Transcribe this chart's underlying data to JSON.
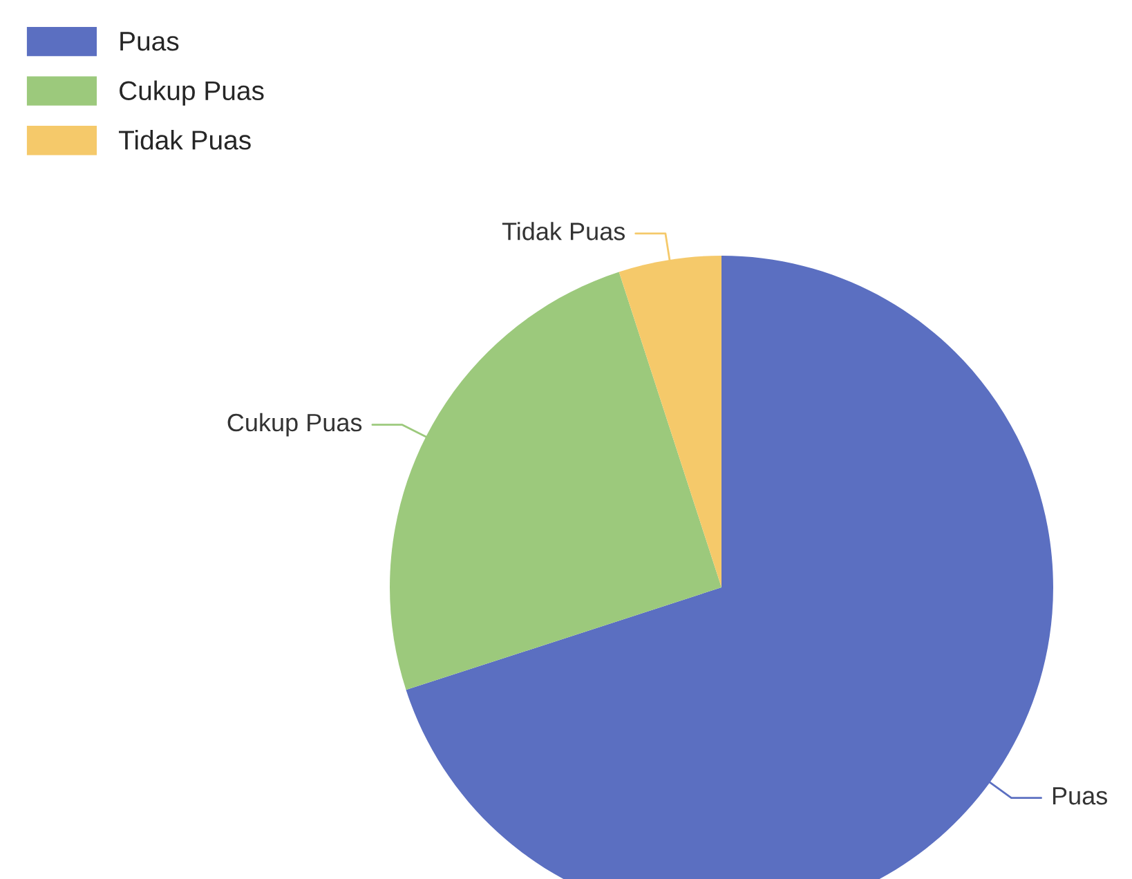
{
  "chart_data": {
    "type": "pie",
    "categories": [
      "Puas",
      "Cukup Puas",
      "Tidak Puas"
    ],
    "values": [
      70,
      25,
      5
    ],
    "colors": [
      "#5b6fc1",
      "#9cc97c",
      "#f5c96a"
    ],
    "legend": "top left"
  }
}
